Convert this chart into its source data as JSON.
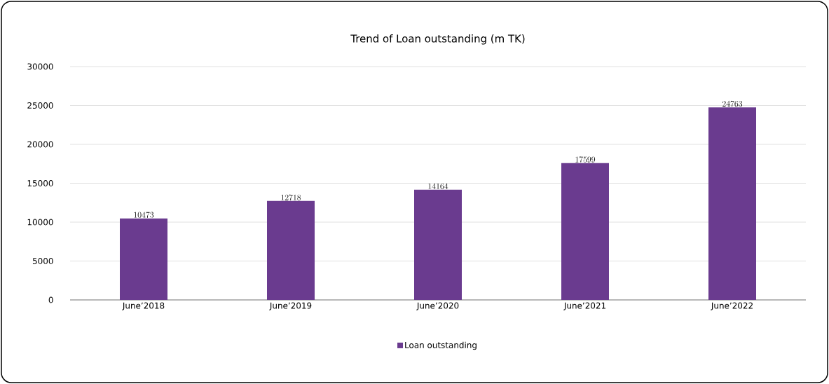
{
  "chart_data": {
    "type": "bar",
    "title": "Trend of Loan outstanding (m TK)",
    "categories": [
      "June’2018",
      "June’2019",
      "June’2020",
      "June’2021",
      "June’2022"
    ],
    "series": [
      {
        "name": "Loan outstanding",
        "color": "#6a3b8f",
        "values": [
          10473,
          12718,
          14164,
          17599,
          24763
        ]
      }
    ],
    "ylim": [
      0,
      30000
    ],
    "yticks": [
      0,
      5000,
      10000,
      15000,
      20000,
      25000,
      30000
    ],
    "grid": "y",
    "legend": "bottom",
    "data_labels": true
  }
}
